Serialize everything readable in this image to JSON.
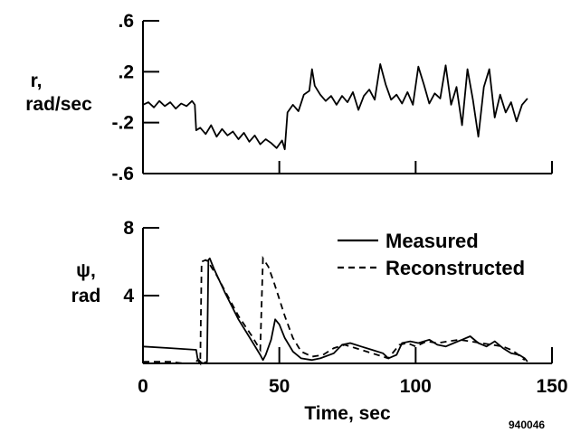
{
  "figure_id": "940046",
  "chart_data": [
    {
      "type": "line",
      "ylabel_lines": [
        "r,",
        "rad/sec"
      ],
      "xlim": [
        0,
        150
      ],
      "ylim": [
        -0.6,
        0.6
      ],
      "y_ticks": [
        0.6,
        0.2,
        -0.2,
        -0.6
      ],
      "y_tick_labels": [
        ".6",
        ".2",
        "-.2",
        "-.6"
      ],
      "x_ticks": [
        50,
        100,
        150
      ],
      "series": [
        {
          "style": "solid",
          "x": [
            0,
            2,
            4,
            6,
            8,
            10,
            12,
            14,
            16,
            18,
            19,
            19.5,
            21,
            23,
            25,
            27,
            29,
            31,
            33,
            35,
            37,
            39,
            41,
            43,
            45,
            47,
            49,
            51,
            52,
            53,
            55,
            57,
            59,
            61,
            62,
            63,
            65,
            67,
            69,
            71,
            73,
            75,
            77,
            79,
            81,
            83,
            85,
            87,
            89,
            91,
            93,
            95,
            97,
            99,
            101,
            103,
            105,
            107,
            109,
            111,
            113,
            115,
            117,
            119,
            121,
            123,
            125,
            127,
            129,
            131,
            133,
            135,
            137,
            139,
            141
          ],
          "y": [
            -0.06,
            -0.04,
            -0.08,
            -0.03,
            -0.07,
            -0.04,
            -0.09,
            -0.05,
            -0.07,
            -0.03,
            -0.06,
            -0.26,
            -0.24,
            -0.29,
            -0.22,
            -0.31,
            -0.25,
            -0.3,
            -0.27,
            -0.33,
            -0.28,
            -0.35,
            -0.3,
            -0.37,
            -0.33,
            -0.36,
            -0.4,
            -0.34,
            -0.41,
            -0.12,
            -0.06,
            -0.11,
            0.02,
            0.05,
            0.22,
            0.09,
            0.02,
            -0.03,
            0.01,
            -0.06,
            0.01,
            -0.04,
            0.04,
            -0.1,
            0.01,
            0.06,
            -0.02,
            0.26,
            0.1,
            -0.02,
            0.02,
            -0.05,
            0.04,
            -0.06,
            0.24,
            0.1,
            -0.05,
            0.03,
            -0.01,
            0.25,
            -0.06,
            0.08,
            -0.22,
            0.22,
            -0.02,
            -0.31,
            0.08,
            0.22,
            -0.16,
            0.02,
            -0.12,
            -0.04,
            -0.19,
            -0.06,
            -0.01
          ]
        }
      ]
    },
    {
      "type": "line",
      "ylabel_lines": [
        "ψ,",
        "rad"
      ],
      "xlabel": "Time, sec",
      "xlim": [
        0,
        150
      ],
      "ylim": [
        0,
        8
      ],
      "y_ticks": [
        8,
        4
      ],
      "y_tick_labels": [
        "8",
        "4"
      ],
      "x_ticks": [
        0,
        50,
        100,
        150
      ],
      "x_tick_labels": [
        "0",
        "50",
        "100",
        "150"
      ],
      "series": [
        {
          "name": "Measured",
          "style": "solid",
          "x": [
            0,
            10,
            19.5,
            20,
            21,
            22,
            23.5,
            24,
            24.5,
            26,
            30,
            35,
            40,
            43,
            44,
            45,
            47,
            48.5,
            50,
            52,
            55,
            58,
            62,
            65,
            70,
            73,
            76,
            80,
            84,
            88,
            90,
            93,
            95,
            98,
            101,
            105,
            108,
            111,
            114,
            117,
            120,
            123,
            126,
            129,
            132,
            135,
            138,
            140,
            141
          ],
          "y": [
            1.0,
            0.9,
            0.8,
            0.3,
            0.1,
            0.0,
            0.1,
            6.1,
            6.2,
            5.6,
            4.2,
            2.6,
            1.3,
            0.5,
            0.2,
            0.5,
            1.4,
            2.6,
            2.3,
            1.5,
            0.7,
            0.3,
            0.2,
            0.3,
            0.6,
            1.1,
            1.2,
            1.0,
            0.8,
            0.6,
            0.3,
            0.5,
            1.2,
            1.3,
            1.2,
            1.4,
            1.1,
            1.0,
            1.2,
            1.4,
            1.6,
            1.2,
            1.0,
            1.3,
            0.9,
            0.6,
            0.5,
            0.3,
            0.1
          ]
        },
        {
          "name": "Reconstructed",
          "style": "dashed",
          "x": [
            0,
            5,
            10,
            15,
            17,
            19,
            20,
            21,
            21.5,
            23,
            24,
            25,
            27,
            30,
            35,
            40,
            43,
            44,
            46,
            48,
            50,
            52,
            55,
            58,
            62,
            66,
            70,
            74,
            78,
            82,
            86,
            90,
            94,
            97,
            100,
            104,
            108,
            112,
            116,
            120,
            124,
            128,
            132,
            135,
            137,
            139,
            140
          ],
          "y": [
            0.1,
            0.1,
            0.1,
            0.0,
            0.0,
            0.0,
            0.2,
            0.0,
            6.0,
            6.1,
            6.0,
            5.7,
            5.2,
            4.3,
            2.8,
            1.6,
            0.8,
            6.2,
            5.7,
            4.8,
            3.8,
            2.8,
            1.5,
            0.7,
            0.4,
            0.5,
            0.9,
            1.1,
            0.9,
            0.7,
            0.5,
            0.3,
            1.1,
            1.2,
            1.0,
            1.3,
            1.2,
            1.3,
            1.4,
            1.3,
            1.2,
            1.1,
            1.0,
            0.8,
            0.6,
            0.3,
            0.2
          ]
        }
      ]
    }
  ]
}
